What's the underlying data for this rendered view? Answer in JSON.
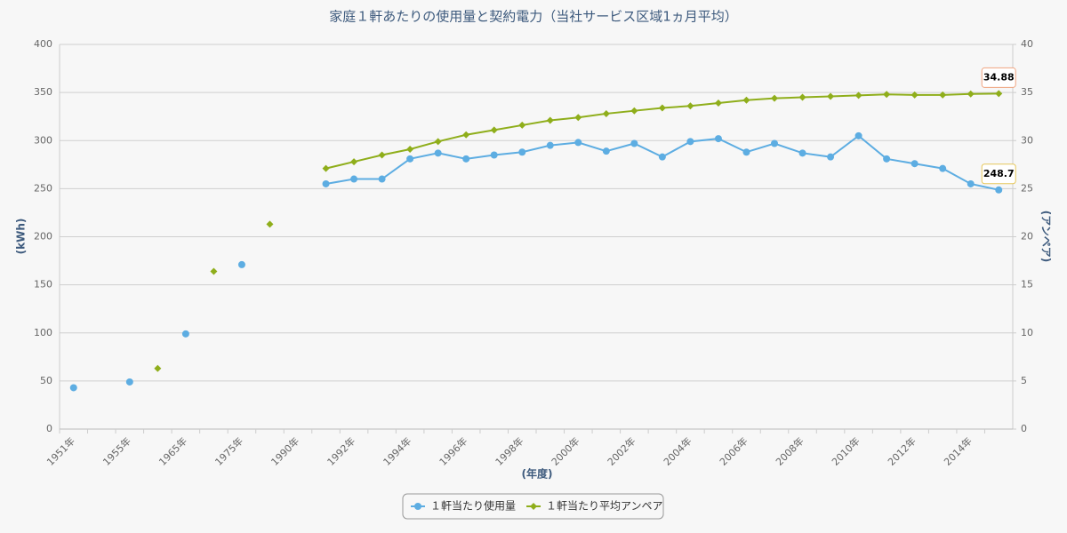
{
  "chart_data": {
    "type": "line",
    "title": "家庭１軒あたりの使用量と契約電力（当社サービス区域1ヵ月平均）",
    "x_label": "(年度)",
    "y_label": "(kWh)",
    "y2_label": "(アンペア)",
    "categories": [
      "1951年",
      null,
      "1955年",
      null,
      "1965年",
      null,
      "1975年",
      null,
      "1990年",
      null,
      "1992年",
      null,
      "1994年",
      null,
      "1996年",
      null,
      "1998年",
      null,
      "2000年",
      null,
      "2002年",
      null,
      "2004年",
      null,
      "2006年",
      null,
      "2008年",
      null,
      "2010年",
      null,
      "2012年",
      null,
      "2014年",
      null
    ],
    "series": [
      {
        "name": "１軒当たり使用量",
        "color": "#5dade2",
        "marker": "circle",
        "values": [
          43,
          null,
          49,
          null,
          99,
          null,
          171,
          null,
          null,
          255,
          260,
          260,
          281,
          287,
          281,
          285,
          288,
          295,
          298,
          289,
          297,
          283,
          299,
          302,
          288,
          297,
          287,
          283,
          305,
          281,
          276,
          271,
          255,
          248.7
        ]
      },
      {
        "name": "１軒当たり平均アンペア",
        "color": "#8fae1b",
        "marker": "diamond",
        "axis": "y2",
        "values": [
          null,
          null,
          null,
          6.3,
          null,
          16.4,
          null,
          21.3,
          null,
          27.1,
          27.8,
          28.5,
          29.1,
          29.9,
          30.6,
          31.1,
          31.6,
          32.1,
          32.4,
          32.8,
          33.1,
          33.4,
          33.6,
          33.9,
          34.2,
          34.4,
          34.5,
          34.6,
          34.7,
          34.8,
          34.75,
          34.75,
          34.85,
          34.88
        ]
      }
    ],
    "ylim": [
      0,
      400
    ],
    "yticks": [
      0,
      50,
      100,
      150,
      200,
      250,
      300,
      350,
      400
    ],
    "y2lim": [
      0,
      40
    ],
    "y2ticks": [
      0,
      5,
      10,
      15,
      20,
      25,
      30,
      35,
      40
    ],
    "grid": true,
    "legend": "bottom"
  }
}
